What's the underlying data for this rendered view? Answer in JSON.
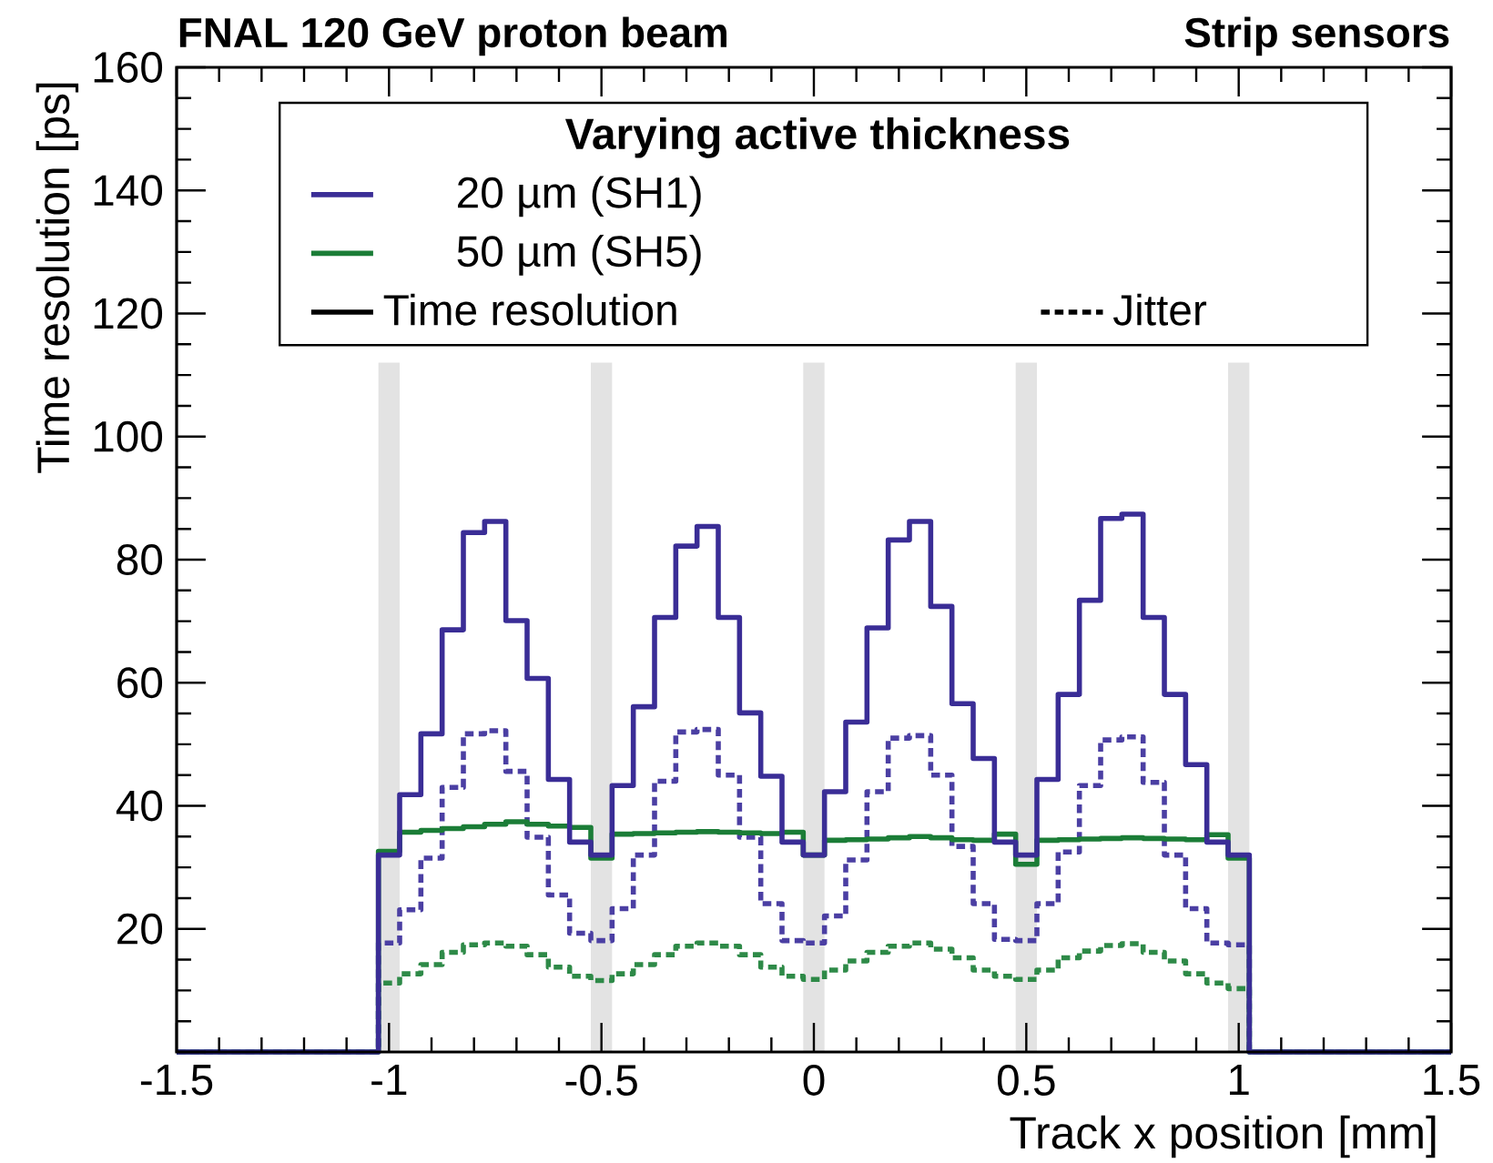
{
  "chart_data": {
    "type": "histogram",
    "title": "FNAL 120 GeV proton beam",
    "subtitle": "Strip sensors",
    "xlabel": "Track x position [mm]",
    "ylabel": "Time resolution [ps]",
    "legend_title": "Varying active thickness",
    "bins": [
      -1.5,
      -1.025,
      -0.975,
      -0.925,
      -0.875,
      -0.825,
      -0.775,
      -0.725,
      -0.675,
      -0.625,
      -0.575,
      -0.525,
      -0.475,
      -0.425,
      -0.375,
      -0.325,
      -0.275,
      -0.225,
      -0.175,
      -0.125,
      -0.075,
      -0.025,
      0.025,
      0.075,
      0.125,
      0.175,
      0.225,
      0.275,
      0.325,
      0.375,
      0.425,
      0.475,
      0.525,
      0.575,
      0.625,
      0.675,
      0.725,
      0.775,
      0.825,
      0.875,
      0.925,
      0.975,
      1.025,
      1.5
    ],
    "series": [
      {
        "name": "20 µm  (SH1)",
        "color": "#3a2d96",
        "line_style": "solid",
        "values": [
          0,
          32.0,
          41.8,
          51.7,
          68.6,
          84.4,
          86.2,
          70.1,
          60.7,
          44.3,
          34.1,
          32.0,
          43.3,
          56.1,
          70.6,
          82.2,
          85.4,
          70.6,
          55.1,
          44.8,
          34.1,
          32.0,
          42.3,
          53.6,
          68.9,
          83.2,
          86.2,
          72.4,
          56.6,
          47.7,
          34.1,
          32.0,
          44.3,
          58.1,
          73.4,
          86.7,
          87.4,
          70.6,
          58.1,
          46.7,
          34.1,
          32.0,
          0
        ]
      },
      {
        "name": "50 µm  (SH5)",
        "color": "#1b7d37",
        "line_style": "solid",
        "values": [
          0,
          32.6,
          35.7,
          36.0,
          36.3,
          36.6,
          37.0,
          37.4,
          37.0,
          36.7,
          36.5,
          31.5,
          35.4,
          35.5,
          35.6,
          35.7,
          35.8,
          35.7,
          35.6,
          35.5,
          35.7,
          32.0,
          34.4,
          34.5,
          34.6,
          34.8,
          35.0,
          34.8,
          34.5,
          34.4,
          35.4,
          30.5,
          34.4,
          34.5,
          34.6,
          34.7,
          34.8,
          34.7,
          34.6,
          34.5,
          35.3,
          31.5,
          0
        ]
      },
      {
        "color": "#4b3fa3",
        "line_style": "dotted",
        "values": [
          0,
          17.7,
          23.1,
          31.5,
          43.0,
          51.7,
          52.2,
          45.6,
          34.9,
          25.5,
          19.3,
          18.1,
          23.3,
          32.0,
          44.0,
          52.0,
          52.4,
          45.0,
          34.9,
          24.1,
          18.1,
          17.7,
          22.1,
          31.2,
          42.3,
          51.0,
          51.4,
          45.0,
          33.4,
          24.1,
          18.3,
          18.1,
          24.1,
          32.5,
          43.3,
          50.7,
          51.2,
          43.8,
          32.0,
          23.3,
          17.7,
          17.4,
          0
        ]
      },
      {
        "color": "#2e8a48",
        "line_style": "dotted",
        "values": [
          0,
          11.2,
          12.7,
          14.2,
          16.2,
          17.4,
          17.7,
          17.2,
          15.8,
          13.8,
          12.3,
          11.6,
          12.7,
          14.2,
          15.8,
          17.2,
          17.7,
          17.2,
          15.8,
          13.8,
          12.3,
          11.8,
          13.3,
          14.8,
          16.2,
          17.2,
          17.7,
          16.7,
          15.3,
          13.3,
          12.3,
          11.8,
          13.3,
          15.3,
          16.4,
          17.3,
          17.6,
          16.2,
          14.8,
          12.7,
          11.2,
          10.3,
          0
        ]
      }
    ],
    "annotations": [
      "Time resolution",
      "Jitter"
    ],
    "bands": [
      {
        "axis": "x",
        "from": -1.025,
        "to": -0.975,
        "color": "#e3e3e3"
      },
      {
        "axis": "x",
        "from": -0.525,
        "to": -0.475,
        "color": "#e3e3e3"
      },
      {
        "axis": "x",
        "from": -0.025,
        "to": 0.025,
        "color": "#e3e3e3"
      },
      {
        "axis": "x",
        "from": 0.475,
        "to": 0.525,
        "color": "#e3e3e3"
      },
      {
        "axis": "x",
        "from": 0.975,
        "to": 1.025,
        "color": "#e3e3e3"
      }
    ],
    "xlim": [
      -1.5,
      1.5
    ],
    "ylim": [
      0,
      160
    ],
    "xticks": [
      -1.5,
      -1,
      -0.5,
      0,
      0.5,
      1,
      1.5
    ],
    "yticks": [
      {
        "value": 0,
        "label": null
      },
      20,
      40,
      60,
      80,
      100,
      120,
      140,
      160
    ],
    "legend": "top",
    "grid": false,
    "marker": "none"
  }
}
